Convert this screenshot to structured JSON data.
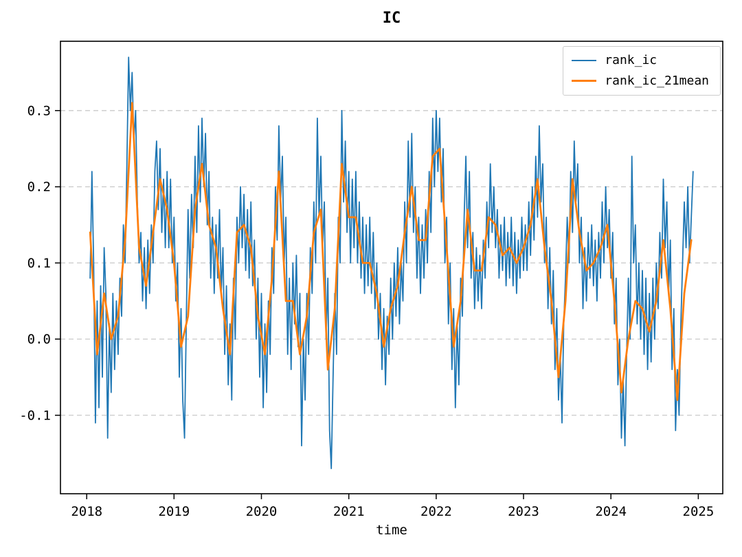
{
  "chart_data": {
    "type": "line",
    "title": "IC",
    "xlabel": "time",
    "ylabel": "",
    "x_ticks": [
      2018,
      2019,
      2020,
      2021,
      2022,
      2023,
      2024,
      2025
    ],
    "x_tick_labels": [
      "2018",
      "2019",
      "2020",
      "2021",
      "2022",
      "2023",
      "2024",
      "2025"
    ],
    "y_ticks": [
      -0.1,
      0.0,
      0.1,
      0.2,
      0.3
    ],
    "y_tick_labels": [
      "-0.1",
      "0.0",
      "0.1",
      "0.2",
      "0.3"
    ],
    "xlim": [
      2017.7,
      2025.28
    ],
    "ylim": [
      -0.203,
      0.391
    ],
    "grid": "dashed-horizontal",
    "legend_position": "upper right",
    "series": [
      {
        "name": "rank_ic",
        "color": "#1f77b4",
        "line_width": 1.8,
        "x_start": 2018.04,
        "x_step": 0.02,
        "values": [
          0.08,
          0.22,
          0.1,
          -0.11,
          0.05,
          -0.09,
          0.07,
          -0.05,
          0.12,
          0.06,
          -0.13,
          0.02,
          -0.07,
          0.06,
          -0.04,
          0.05,
          -0.02,
          0.08,
          0.03,
          0.15,
          0.1,
          0.23,
          0.37,
          0.3,
          0.35,
          0.26,
          0.3,
          0.18,
          0.1,
          0.14,
          0.05,
          0.12,
          0.04,
          0.13,
          0.06,
          0.15,
          0.1,
          0.22,
          0.26,
          0.17,
          0.25,
          0.14,
          0.21,
          0.12,
          0.22,
          0.12,
          0.21,
          0.1,
          0.16,
          0.05,
          0.1,
          -0.05,
          0.04,
          -0.08,
          -0.13,
          0.02,
          0.17,
          0.08,
          0.19,
          0.12,
          0.24,
          0.14,
          0.28,
          0.18,
          0.29,
          0.2,
          0.27,
          0.15,
          0.22,
          0.08,
          0.16,
          0.06,
          0.15,
          0.08,
          0.17,
          0.06,
          0.12,
          -0.02,
          0.07,
          -0.06,
          0.02,
          -0.08,
          0.08,
          0.0,
          0.16,
          0.1,
          0.2,
          0.12,
          0.19,
          0.09,
          0.17,
          0.08,
          0.18,
          0.07,
          0.13,
          0.0,
          0.08,
          -0.05,
          0.06,
          -0.09,
          0.02,
          -0.07,
          0.05,
          -0.02,
          0.12,
          0.06,
          0.2,
          0.13,
          0.28,
          0.18,
          0.24,
          0.1,
          0.16,
          -0.02,
          0.08,
          -0.04,
          0.1,
          0.02,
          0.11,
          -0.01,
          0.06,
          -0.14,
          0.0,
          -0.08,
          0.06,
          -0.02,
          0.12,
          0.06,
          0.18,
          0.1,
          0.29,
          0.16,
          0.24,
          0.12,
          0.18,
          0.0,
          0.08,
          -0.12,
          -0.17,
          -0.05,
          0.06,
          -0.02,
          0.16,
          0.1,
          0.3,
          0.18,
          0.26,
          0.14,
          0.22,
          0.1,
          0.21,
          0.12,
          0.22,
          0.1,
          0.18,
          0.08,
          0.16,
          0.06,
          0.15,
          0.07,
          0.16,
          0.06,
          0.14,
          0.04,
          0.1,
          0.0,
          0.06,
          -0.04,
          0.04,
          -0.06,
          0.03,
          -0.02,
          0.08,
          0.0,
          0.1,
          0.03,
          0.12,
          0.02,
          0.1,
          0.05,
          0.18,
          0.1,
          0.26,
          0.16,
          0.27,
          0.14,
          0.2,
          0.08,
          0.16,
          0.06,
          0.15,
          0.08,
          0.17,
          0.1,
          0.22,
          0.14,
          0.29,
          0.2,
          0.3,
          0.22,
          0.29,
          0.18,
          0.25,
          0.1,
          0.16,
          0.02,
          0.1,
          -0.04,
          0.04,
          -0.09,
          0.02,
          -0.06,
          0.08,
          0.03,
          0.16,
          0.24,
          0.12,
          0.22,
          0.08,
          0.14,
          0.04,
          0.12,
          0.05,
          0.11,
          0.04,
          0.13,
          0.08,
          0.18,
          0.12,
          0.23,
          0.14,
          0.2,
          0.12,
          0.17,
          0.08,
          0.15,
          0.09,
          0.16,
          0.07,
          0.14,
          0.08,
          0.16,
          0.07,
          0.14,
          0.06,
          0.13,
          0.08,
          0.16,
          0.09,
          0.15,
          0.09,
          0.18,
          0.11,
          0.2,
          0.13,
          0.24,
          0.16,
          0.28,
          0.18,
          0.23,
          0.1,
          0.16,
          0.04,
          0.12,
          0.02,
          0.09,
          -0.04,
          0.04,
          -0.08,
          -0.02,
          -0.11,
          0.02,
          0.08,
          0.16,
          0.1,
          0.22,
          0.14,
          0.26,
          0.18,
          0.23,
          0.1,
          0.16,
          0.04,
          0.12,
          0.05,
          0.14,
          0.08,
          0.15,
          0.07,
          0.13,
          0.05,
          0.14,
          0.08,
          0.18,
          0.1,
          0.2,
          0.12,
          0.17,
          0.08,
          0.14,
          0.02,
          0.08,
          -0.06,
          0.0,
          -0.13,
          -0.05,
          -0.14,
          -0.02,
          0.08,
          0.0,
          0.24,
          0.1,
          0.15,
          0.02,
          0.1,
          0.0,
          0.09,
          -0.02,
          0.08,
          -0.04,
          0.06,
          -0.03,
          0.08,
          0.0,
          0.1,
          0.04,
          0.14,
          0.08,
          0.21,
          0.12,
          0.18,
          0.06,
          0.13,
          -0.04,
          0.04,
          -0.12,
          -0.04,
          -0.1,
          0.02,
          0.1,
          0.18,
          0.12,
          0.2,
          0.1,
          0.16,
          0.22
        ]
      },
      {
        "name": "rank_ic_21mean",
        "color": "#ff7f0e",
        "line_width": 2.8,
        "x_start": 2018.04,
        "x_step": 0.08,
        "values": [
          0.14,
          -0.02,
          0.06,
          0.0,
          0.03,
          0.13,
          0.31,
          0.12,
          0.07,
          0.14,
          0.21,
          0.17,
          0.1,
          -0.01,
          0.03,
          0.17,
          0.23,
          0.15,
          0.12,
          0.04,
          -0.02,
          0.14,
          0.15,
          0.12,
          0.03,
          -0.02,
          0.08,
          0.22,
          0.05,
          0.05,
          -0.02,
          0.03,
          0.14,
          0.17,
          -0.04,
          0.04,
          0.23,
          0.16,
          0.16,
          0.1,
          0.1,
          0.06,
          -0.01,
          0.04,
          0.07,
          0.14,
          0.2,
          0.13,
          0.13,
          0.24,
          0.25,
          0.12,
          -0.01,
          0.05,
          0.17,
          0.09,
          0.09,
          0.16,
          0.15,
          0.11,
          0.12,
          0.1,
          0.12,
          0.15,
          0.21,
          0.12,
          0.05,
          -0.05,
          0.05,
          0.21,
          0.14,
          0.09,
          0.1,
          0.12,
          0.15,
          0.05,
          -0.07,
          0.0,
          0.05,
          0.04,
          0.01,
          0.05,
          0.13,
          0.04,
          -0.08,
          0.06,
          0.13
        ]
      }
    ]
  },
  "colors": {
    "background": "#ffffff",
    "grid": "#c9c9c9",
    "spine": "#000000",
    "tick": "#000000",
    "text": "#000000"
  }
}
